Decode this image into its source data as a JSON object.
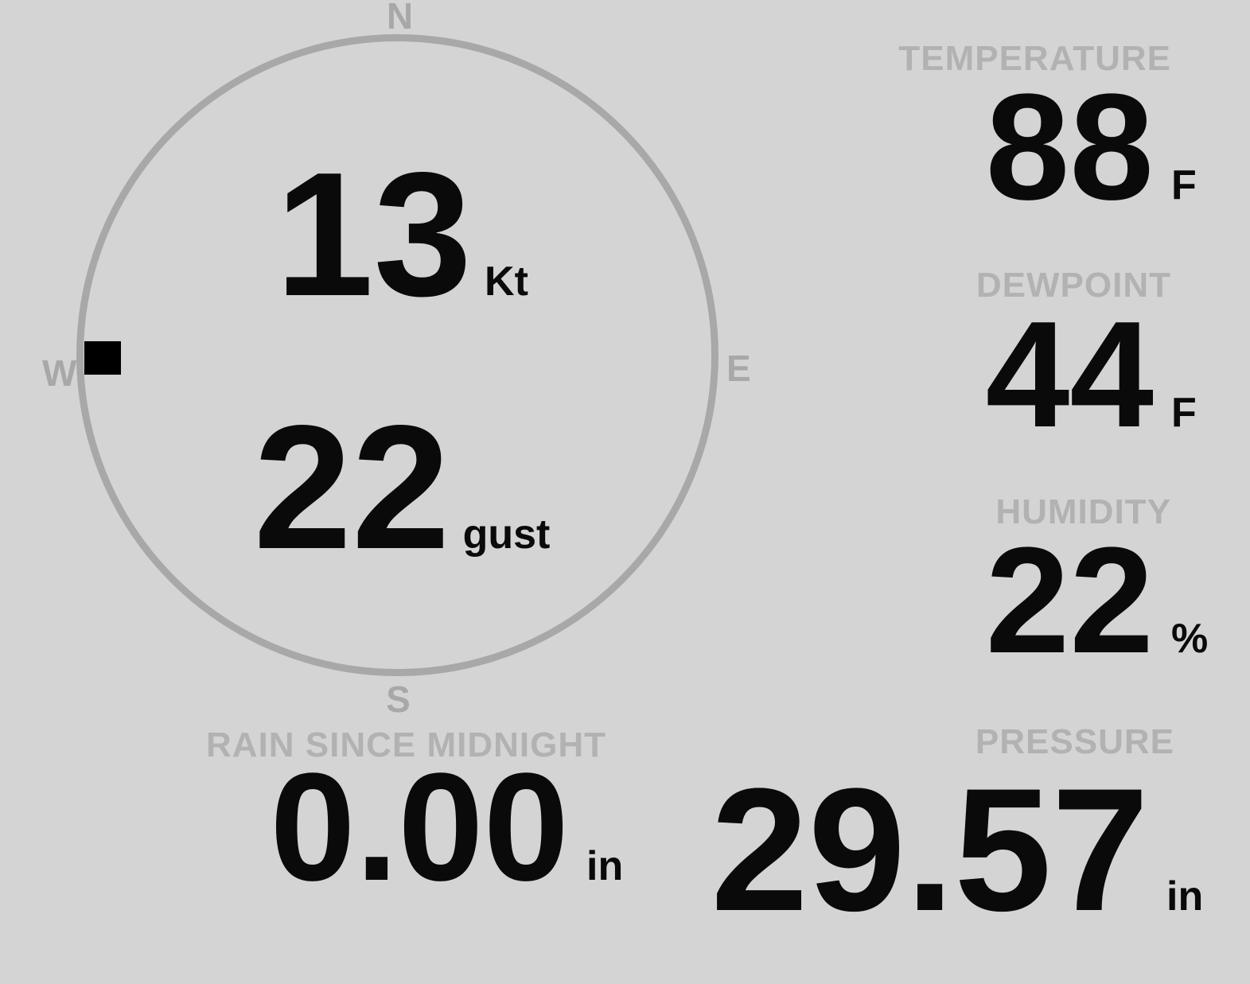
{
  "display": {
    "type": "weather-station-console",
    "background_color": "#d4d4d4",
    "muted_label_color": "#b2b2b2",
    "ring_color": "#a8a8a8",
    "value_color": "#000000"
  },
  "compass": {
    "cardinals": {
      "north": "N",
      "east": "E",
      "south": "S",
      "west": "W"
    },
    "wind_speed": {
      "value": "13",
      "unit": "Kt"
    },
    "wind_gust": {
      "value": "22",
      "unit": "gust"
    },
    "direction_marker": "W"
  },
  "metrics": {
    "temperature": {
      "label": "TEMPERATURE",
      "value": "88",
      "unit": "F"
    },
    "dewpoint": {
      "label": "DEWPOINT",
      "value": "44",
      "unit": "F"
    },
    "humidity": {
      "label": "HUMIDITY",
      "value": "22",
      "unit": "%"
    },
    "rain": {
      "label": "RAIN SINCE MIDNIGHT",
      "value": "0.00",
      "unit": "in"
    },
    "pressure": {
      "label": "PRESSURE",
      "value": "29.57",
      "unit": "in"
    }
  }
}
